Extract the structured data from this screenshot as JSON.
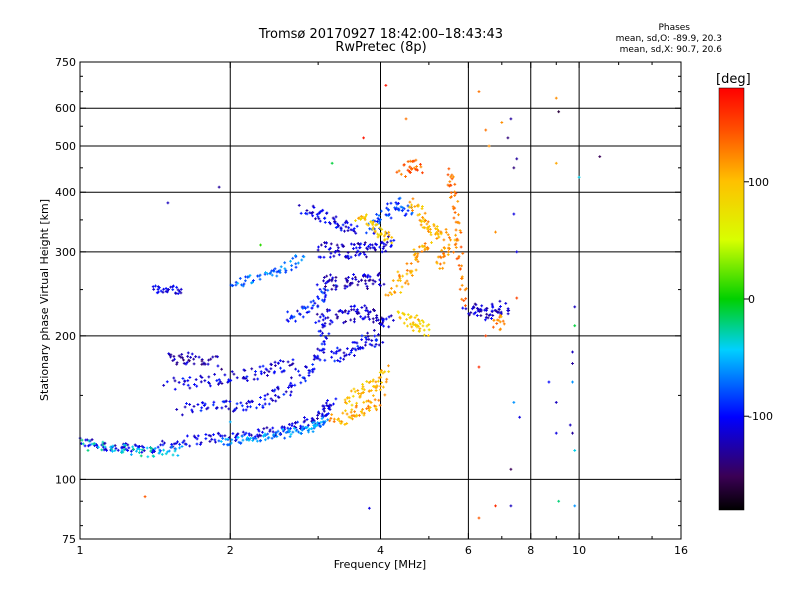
{
  "header": {
    "title_line1": "Tromsø 20170927 18:42:00–18:43:43",
    "title_line2": "RwPretec (8p)",
    "stats_title": "Phases",
    "stats_o": "mean, sd,O: -89.9, 20.3",
    "stats_x": "mean, sd,X: 90.7, 20.6"
  },
  "colorbar": {
    "unit_label": "[deg]",
    "ticks": [
      {
        "value": 100,
        "label": "100"
      },
      {
        "value": 0,
        "label": "0"
      },
      {
        "value": -100,
        "label": "-100"
      }
    ],
    "range": [
      -180,
      180
    ]
  },
  "chart_data": {
    "type": "scatter",
    "xlabel": "Frequency [MHz]",
    "ylabel": "Stationary phase Virtual Height [km]",
    "xscale": "log",
    "yscale": "log",
    "xlim": [
      1,
      16
    ],
    "ylim": [
      75,
      750
    ],
    "x_ticks": [
      {
        "value": 1,
        "label": "1"
      },
      {
        "value": 2,
        "label": "2"
      },
      {
        "value": 4,
        "label": "4"
      },
      {
        "value": 6,
        "label": "6"
      },
      {
        "value": 8,
        "label": "8"
      },
      {
        "value": 10,
        "label": "10"
      },
      {
        "value": 16,
        "label": "16"
      }
    ],
    "y_ticks": [
      {
        "value": 75,
        "label": "75"
      },
      {
        "value": 100,
        "label": "100"
      },
      {
        "value": 200,
        "label": "200"
      },
      {
        "value": 300,
        "label": "300"
      },
      {
        "value": 400,
        "label": "400"
      },
      {
        "value": 500,
        "label": "500"
      },
      {
        "value": 600,
        "label": "600"
      },
      {
        "value": 750,
        "label": "750"
      }
    ],
    "x_gridlines": [
      2,
      4,
      6,
      8,
      10
    ],
    "y_gridlines": [
      100,
      200,
      300,
      400,
      500,
      600
    ],
    "grid": true,
    "color_variable": "phase (deg)",
    "traces": [
      {
        "f": [
          1.0,
          1.1,
          1.2,
          1.3,
          1.45,
          1.6,
          1.8,
          2.0,
          2.2,
          2.4,
          2.6,
          2.8,
          3.0,
          3.1,
          3.2
        ],
        "h": [
          120,
          118,
          116,
          116,
          117,
          120,
          122,
          123,
          124,
          126,
          128,
          130,
          135,
          140,
          145
        ],
        "phase": -110,
        "spread": 0.025
      },
      {
        "f": [
          1.0,
          1.15,
          1.3,
          1.45,
          1.6
        ],
        "h": [
          118,
          117,
          115,
          114,
          115
        ],
        "phase": -40,
        "spread": 0.025
      },
      {
        "f": [
          1.9,
          2.1,
          2.3,
          2.5,
          2.7,
          2.9,
          3.0,
          3.1
        ],
        "h": [
          120,
          121,
          122,
          124,
          126,
          128,
          130,
          134
        ],
        "phase": -60,
        "spread": 0.02
      },
      {
        "f": [
          1.6,
          1.8,
          2.0,
          2.2,
          2.4,
          2.6,
          2.8,
          3.0,
          3.05,
          3.1
        ],
        "h": [
          140,
          142,
          142,
          144,
          148,
          155,
          165,
          175,
          190,
          210
        ],
        "phase": -105,
        "spread": 0.03
      },
      {
        "f": [
          1.5,
          1.7,
          1.9,
          2.1,
          2.3,
          2.5,
          2.7
        ],
        "h": [
          158,
          160,
          162,
          165,
          168,
          172,
          176
        ],
        "phase": -110,
        "spread": 0.03
      },
      {
        "f": [
          1.5,
          1.6,
          1.75,
          1.9
        ],
        "h": [
          178,
          180,
          178,
          175
        ],
        "phase": -125,
        "spread": 0.03
      },
      {
        "f": [
          1.4,
          1.5,
          1.6
        ],
        "h": [
          250,
          250,
          250
        ],
        "phase": -110,
        "spread": 0.02
      },
      {
        "f": [
          2.0,
          2.2,
          2.4,
          2.6,
          2.8
        ],
        "h": [
          255,
          262,
          270,
          280,
          290
        ],
        "phase": -70,
        "spread": 0.025
      },
      {
        "f": [
          2.6,
          2.8,
          3.0,
          3.2
        ],
        "h": [
          218,
          225,
          235,
          250
        ],
        "phase": -95,
        "spread": 0.03
      },
      {
        "f": [
          3.0,
          3.2,
          3.4,
          3.6,
          3.8,
          4.0,
          4.2
        ],
        "h": [
          300,
          305,
          300,
          305,
          300,
          310,
          320
        ],
        "phase": -115,
        "spread": 0.035
      },
      {
        "f": [
          3.0,
          3.2,
          3.4,
          3.6,
          3.8,
          4.0
        ],
        "h": [
          250,
          260,
          255,
          262,
          258,
          265
        ],
        "phase": -120,
        "spread": 0.035
      },
      {
        "f": [
          3.0,
          3.2,
          3.4,
          3.6,
          3.8,
          4.0,
          4.2
        ],
        "h": [
          215,
          220,
          218,
          225,
          222,
          218,
          212
        ],
        "phase": -115,
        "spread": 0.035
      },
      {
        "f": [
          3.2,
          3.4,
          3.6,
          3.8,
          4.0
        ],
        "h": [
          180,
          185,
          190,
          195,
          200
        ],
        "phase": -105,
        "spread": 0.035
      },
      {
        "f": [
          2.8,
          3.0,
          3.2,
          3.4,
          3.6
        ],
        "h": [
          370,
          360,
          350,
          340,
          330
        ],
        "phase": -110,
        "spread": 0.03
      },
      {
        "f": [
          3.8,
          4.0,
          4.2,
          4.4,
          4.6
        ],
        "h": [
          330,
          350,
          370,
          380,
          360
        ],
        "phase": -85,
        "spread": 0.03
      },
      {
        "f": [
          3.2,
          3.4,
          3.6,
          3.8,
          4.0
        ],
        "h": [
          132,
          135,
          138,
          142,
          148
        ],
        "phase": 110,
        "spread": 0.03
      },
      {
        "f": [
          3.4,
          3.6,
          3.8,
          4.0,
          4.1
        ],
        "h": [
          145,
          150,
          156,
          162,
          170
        ],
        "phase": 100,
        "spread": 0.035
      },
      {
        "f": [
          3.6,
          3.8,
          4.0,
          4.2
        ],
        "h": [
          360,
          345,
          330,
          320
        ],
        "phase": 95,
        "spread": 0.03
      },
      {
        "f": [
          4.2,
          4.4,
          4.6,
          4.8,
          5.0
        ],
        "h": [
          250,
          260,
          280,
          300,
          320
        ],
        "phase": 110,
        "spread": 0.035
      },
      {
        "f": [
          4.6,
          4.8,
          5.0,
          5.2,
          5.4
        ],
        "h": [
          380,
          360,
          340,
          330,
          320
        ],
        "phase": 105,
        "spread": 0.03
      },
      {
        "f": [
          4.4,
          4.6,
          4.8,
          5.0
        ],
        "h": [
          220,
          215,
          210,
          205
        ],
        "phase": 95,
        "spread": 0.03
      },
      {
        "f": [
          5.5,
          5.6,
          5.7,
          5.8,
          5.9
        ],
        "h": [
          440,
          400,
          340,
          280,
          230
        ],
        "phase": 130,
        "spread": 0.02
      },
      {
        "f": [
          5.2,
          5.4,
          5.6
        ],
        "h": [
          280,
          300,
          320
        ],
        "phase": 115,
        "spread": 0.03
      },
      {
        "f": [
          4.4,
          4.6,
          4.8
        ],
        "h": [
          440,
          460,
          450
        ],
        "phase": 140,
        "spread": 0.03
      },
      {
        "f": [
          6.0,
          6.3,
          6.6,
          6.9,
          7.2
        ],
        "h": [
          230,
          225,
          222,
          226,
          230
        ],
        "phase": -120,
        "spread": 0.035
      },
      {
        "f": [
          6.8,
          7.0
        ],
        "h": [
          210,
          215
        ],
        "phase": 120,
        "spread": 0.03
      }
    ],
    "isolated_points": [
      {
        "f": 1.35,
        "h": 92,
        "phase": 140
      },
      {
        "f": 1.5,
        "h": 380,
        "phase": -120
      },
      {
        "f": 1.9,
        "h": 410,
        "phase": -130
      },
      {
        "f": 4.1,
        "h": 670,
        "phase": 170
      },
      {
        "f": 4.5,
        "h": 570,
        "phase": 130
      },
      {
        "f": 3.7,
        "h": 520,
        "phase": 170
      },
      {
        "f": 3.2,
        "h": 460,
        "phase": -10
      },
      {
        "f": 6.3,
        "h": 650,
        "phase": 130
      },
      {
        "f": 6.5,
        "h": 540,
        "phase": 130
      },
      {
        "f": 6.6,
        "h": 500,
        "phase": 120
      },
      {
        "f": 7.0,
        "h": 560,
        "phase": 120
      },
      {
        "f": 7.2,
        "h": 520,
        "phase": -140
      },
      {
        "f": 7.3,
        "h": 570,
        "phase": -130
      },
      {
        "f": 7.4,
        "h": 450,
        "phase": -140
      },
      {
        "f": 7.5,
        "h": 470,
        "phase": -130
      },
      {
        "f": 9.0,
        "h": 630,
        "phase": 120
      },
      {
        "f": 9.1,
        "h": 590,
        "phase": -160
      },
      {
        "f": 9.0,
        "h": 460,
        "phase": 110
      },
      {
        "f": 10.0,
        "h": 430,
        "phase": -40
      },
      {
        "f": 11.0,
        "h": 475,
        "phase": -150
      },
      {
        "f": 7.4,
        "h": 360,
        "phase": -110
      },
      {
        "f": 7.5,
        "h": 300,
        "phase": -110
      },
      {
        "f": 6.8,
        "h": 330,
        "phase": 120
      },
      {
        "f": 7.5,
        "h": 240,
        "phase": 150
      },
      {
        "f": 9.8,
        "h": 230,
        "phase": -120
      },
      {
        "f": 9.8,
        "h": 210,
        "phase": -10
      },
      {
        "f": 9.7,
        "h": 185,
        "phase": -120
      },
      {
        "f": 9.7,
        "h": 175,
        "phase": -130
      },
      {
        "f": 9.7,
        "h": 160,
        "phase": -60
      },
      {
        "f": 9.6,
        "h": 130,
        "phase": -120
      },
      {
        "f": 9.7,
        "h": 125,
        "phase": -130
      },
      {
        "f": 9.8,
        "h": 115,
        "phase": -40
      },
      {
        "f": 9.0,
        "h": 145,
        "phase": -120
      },
      {
        "f": 9.0,
        "h": 125,
        "phase": -110
      },
      {
        "f": 9.1,
        "h": 90,
        "phase": -20
      },
      {
        "f": 9.8,
        "h": 88,
        "phase": -60
      },
      {
        "f": 7.3,
        "h": 105,
        "phase": -150
      },
      {
        "f": 7.3,
        "h": 88,
        "phase": -120
      },
      {
        "f": 6.3,
        "h": 83,
        "phase": 140
      },
      {
        "f": 6.8,
        "h": 88,
        "phase": 160
      },
      {
        "f": 7.4,
        "h": 145,
        "phase": -60
      },
      {
        "f": 7.6,
        "h": 135,
        "phase": -110
      },
      {
        "f": 6.3,
        "h": 172,
        "phase": 160
      },
      {
        "f": 6.5,
        "h": 200,
        "phase": 150
      },
      {
        "f": 8.7,
        "h": 160,
        "phase": -100
      },
      {
        "f": 3.8,
        "h": 87,
        "phase": -110
      },
      {
        "f": 2.0,
        "h": 132,
        "phase": -50
      },
      {
        "f": 2.3,
        "h": 310,
        "phase": 10
      }
    ]
  }
}
